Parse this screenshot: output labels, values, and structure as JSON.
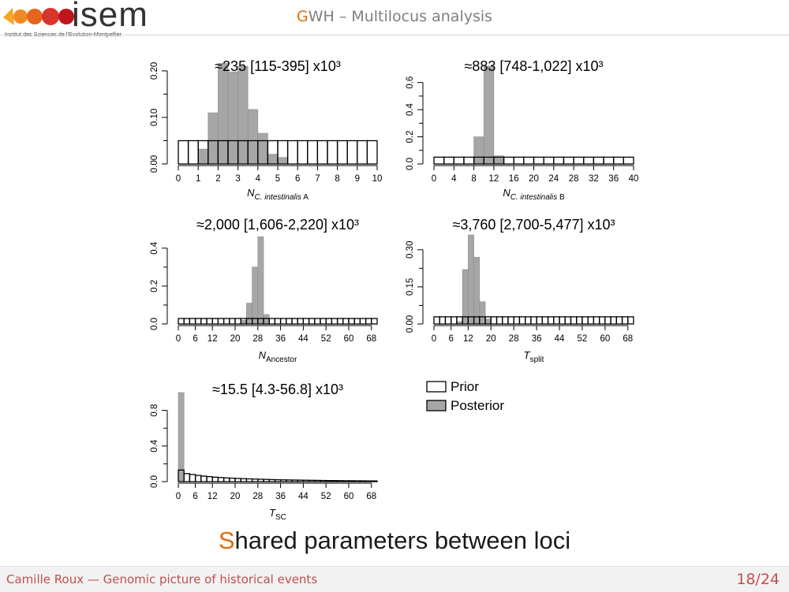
{
  "header": {
    "logo_text": "isem",
    "logo_subtext": "Institut des Sciences de l'Evolution-Montpellier",
    "title_accent": "G",
    "title_rest": "WH – Multilocus analysis"
  },
  "subtitle": {
    "accent": "S",
    "rest": "hared parameters between loci"
  },
  "footer": {
    "left": "Camille Roux — Genomic picture of historical events",
    "page": "18/24"
  },
  "colors": {
    "accent": "#e36c0a",
    "footer_text": "#c0504d",
    "posterior_fill": "#a6a6a6",
    "prior_fill": "#ffffff"
  },
  "chart_data": [
    {
      "type": "bar",
      "title": "≈235 [115-395] x10³",
      "xlabel_main": "N",
      "xlabel_sub": "C. intestinalis",
      "xlabel_tail": " A",
      "xlabel_tail_sub": false,
      "xlim": [
        0,
        10
      ],
      "ylim": [
        0,
        0.21
      ],
      "xticks": [
        0,
        1,
        2,
        3,
        4,
        5,
        6,
        7,
        8,
        9,
        10
      ],
      "yticks": [
        0.0,
        0.1,
        0.2
      ],
      "ytick_labels": [
        "0.00",
        "0.10",
        "0.20"
      ],
      "bin_start": 0,
      "bin_width": 0.5,
      "prior": [
        0.05,
        0.05,
        0.05,
        0.05,
        0.05,
        0.05,
        0.05,
        0.05,
        0.05,
        0.05,
        0.05,
        0.05,
        0.05,
        0.05,
        0.05,
        0.05,
        0.05,
        0.05,
        0.05,
        0.05
      ],
      "posterior": [
        0,
        0,
        0.032,
        0.11,
        0.216,
        0.198,
        0.21,
        0.117,
        0.066,
        0.021,
        0.014,
        0,
        0,
        0,
        0,
        0,
        0,
        0,
        0,
        0
      ]
    },
    {
      "type": "bar",
      "title": "≈883 [748-1,022] x10³",
      "xlabel_main": "N",
      "xlabel_sub": "C. intestinalis",
      "xlabel_tail": " B",
      "xlabel_tail_sub": false,
      "xlim": [
        0,
        40
      ],
      "ylim": [
        0,
        0.72
      ],
      "xticks": [
        0,
        4,
        8,
        12,
        16,
        20,
        24,
        28,
        32,
        36,
        40
      ],
      "yticks": [
        0.0,
        0.2,
        0.4,
        0.6
      ],
      "ytick_labels": [
        "0.0",
        "0.2",
        "0.4",
        "0.6"
      ],
      "bin_start": 0,
      "bin_width": 2,
      "prior": [
        0.05,
        0.05,
        0.05,
        0.05,
        0.05,
        0.05,
        0.05,
        0.05,
        0.05,
        0.05,
        0.05,
        0.05,
        0.05,
        0.05,
        0.05,
        0.05,
        0.05,
        0.05,
        0.05,
        0.05
      ],
      "posterior": [
        0,
        0,
        0,
        0,
        0.2,
        0.72,
        0.06,
        0,
        0,
        0,
        0,
        0,
        0,
        0,
        0,
        0,
        0,
        0,
        0,
        0
      ]
    },
    {
      "type": "bar",
      "title": "≈2,000 [1,606-2,220] x10³",
      "xlabel_main": "N",
      "xlabel_sub": "Ancestor",
      "xlabel_tail": "",
      "xlabel_tail_sub": true,
      "xlim": [
        0,
        70
      ],
      "ylim": [
        0,
        0.47
      ],
      "xticks": [
        0,
        6,
        12,
        20,
        28,
        36,
        44,
        52,
        60,
        68
      ],
      "yticks": [
        0.0,
        0.2,
        0.4
      ],
      "ytick_labels": [
        "0.0",
        "0.2",
        "0.4"
      ],
      "bin_start": 0,
      "bin_width": 2,
      "prior": [
        0.029,
        0.029,
        0.029,
        0.029,
        0.029,
        0.029,
        0.029,
        0.029,
        0.029,
        0.029,
        0.029,
        0.029,
        0.029,
        0.029,
        0.029,
        0.029,
        0.029,
        0.029,
        0.029,
        0.029,
        0.029,
        0.029,
        0.029,
        0.029,
        0.029,
        0.029,
        0.029,
        0.029,
        0.029,
        0.029,
        0.029,
        0.029,
        0.029,
        0.029,
        0.029
      ],
      "posterior": [
        0,
        0,
        0,
        0,
        0,
        0,
        0,
        0,
        0,
        0,
        0,
        0.02,
        0.11,
        0.3,
        0.46,
        0.05,
        0,
        0,
        0,
        0,
        0,
        0,
        0,
        0,
        0,
        0,
        0,
        0,
        0,
        0,
        0,
        0,
        0,
        0,
        0
      ]
    },
    {
      "type": "bar",
      "title": "≈3,760 [2,700-5,477] x10³",
      "xlabel_main": "T",
      "xlabel_sub": "split",
      "xlabel_tail": "",
      "xlabel_tail_sub": true,
      "xlim": [
        0,
        70
      ],
      "ylim": [
        0,
        0.36
      ],
      "xticks": [
        0,
        6,
        12,
        20,
        28,
        36,
        44,
        52,
        60,
        68
      ],
      "yticks": [
        0.0,
        0.15,
        0.3
      ],
      "ytick_labels": [
        "0.00",
        "0.15",
        "0.30"
      ],
      "bin_start": 0,
      "bin_width": 2,
      "prior": [
        0.029,
        0.029,
        0.029,
        0.029,
        0.029,
        0.029,
        0.029,
        0.029,
        0.029,
        0.029,
        0.029,
        0.029,
        0.029,
        0.029,
        0.029,
        0.029,
        0.029,
        0.029,
        0.029,
        0.029,
        0.029,
        0.029,
        0.029,
        0.029,
        0.029,
        0.029,
        0.029,
        0.029,
        0.029,
        0.029,
        0.029,
        0.029,
        0.029,
        0.029,
        0.029
      ],
      "posterior": [
        0,
        0,
        0,
        0,
        0.01,
        0.22,
        0.36,
        0.27,
        0.09,
        0.02,
        0,
        0,
        0,
        0,
        0,
        0,
        0,
        0,
        0,
        0,
        0,
        0,
        0,
        0,
        0,
        0,
        0,
        0,
        0,
        0,
        0,
        0,
        0,
        0,
        0
      ]
    },
    {
      "type": "bar",
      "title": "≈15.5 [4.3-56.8] x10³",
      "xlabel_main": "T",
      "xlabel_sub": "SC",
      "xlabel_tail": "",
      "xlabel_tail_sub": true,
      "xlim": [
        0,
        70
      ],
      "ylim": [
        0,
        1.0
      ],
      "xticks": [
        0,
        6,
        12,
        20,
        28,
        36,
        44,
        52,
        60,
        68
      ],
      "yticks": [
        0.0,
        0.4,
        0.8
      ],
      "ytick_labels": [
        "0.0",
        "0.4",
        "0.8"
      ],
      "bin_start": 0,
      "bin_width": 2,
      "prior": [
        0.13,
        0.09,
        0.08,
        0.07,
        0.062,
        0.056,
        0.05,
        0.046,
        0.042,
        0.039,
        0.036,
        0.033,
        0.031,
        0.029,
        0.027,
        0.025,
        0.023,
        0.021,
        0.02,
        0.019,
        0.018,
        0.017,
        0.016,
        0.015,
        0.014,
        0.013,
        0.012,
        0.012,
        0.011,
        0.01,
        0.01,
        0.009,
        0.009,
        0.008,
        0.008
      ],
      "posterior": [
        1.0,
        0,
        0,
        0,
        0,
        0,
        0,
        0,
        0,
        0,
        0,
        0,
        0,
        0,
        0,
        0,
        0,
        0,
        0,
        0,
        0,
        0,
        0,
        0,
        0,
        0,
        0,
        0,
        0,
        0,
        0,
        0,
        0,
        0,
        0
      ]
    }
  ],
  "legend": {
    "items": [
      "Prior",
      "Posterior"
    ]
  }
}
